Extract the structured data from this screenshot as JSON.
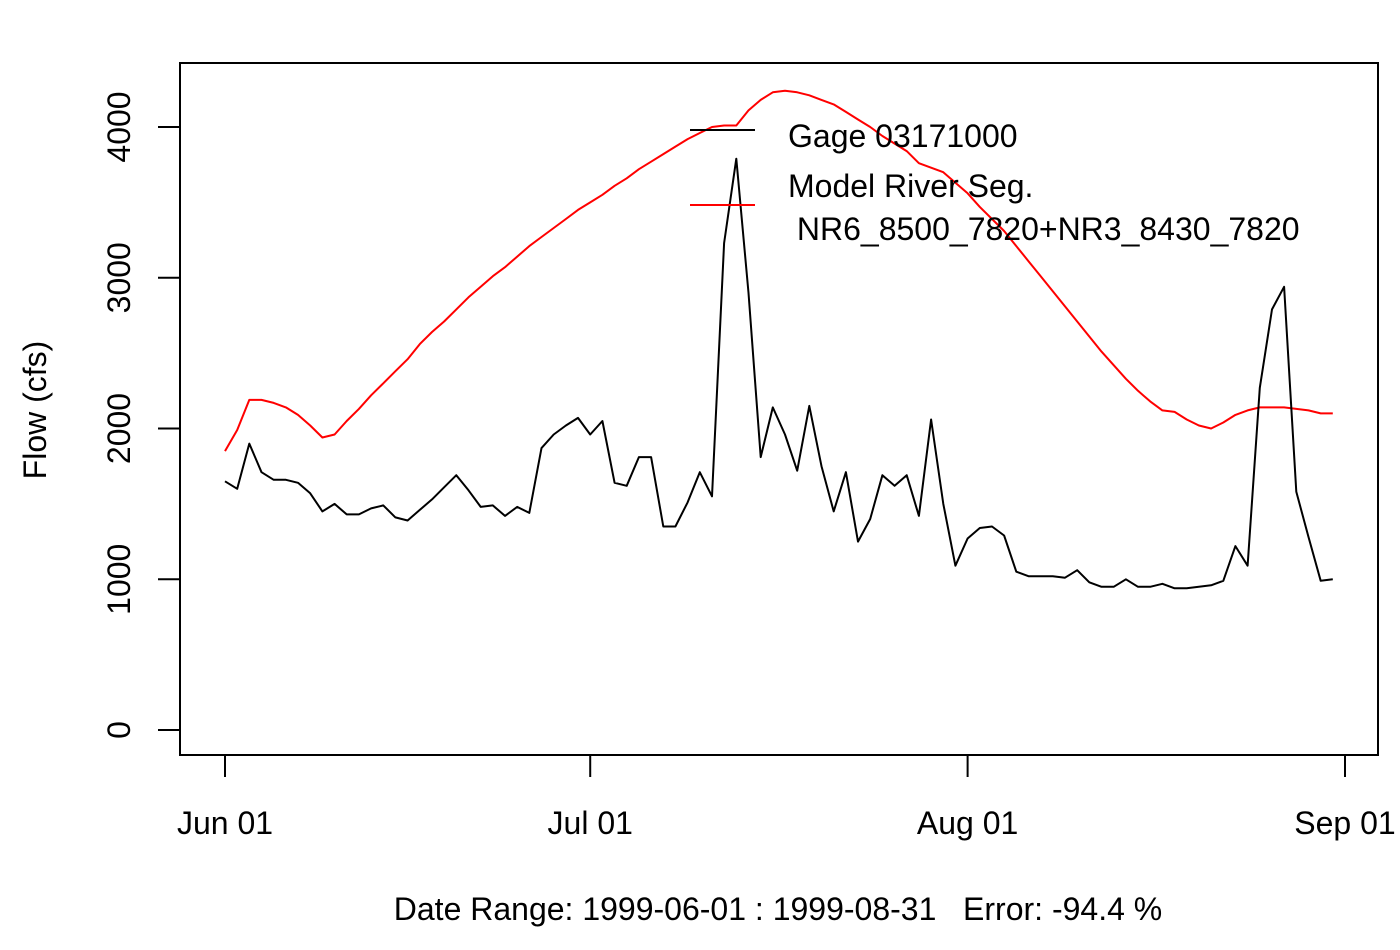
{
  "chart_data": {
    "type": "line",
    "title": "",
    "xlabel": "Date Range: 1999-06-01 : 1999-08-31   Error: -94.4 %",
    "ylabel": "Flow (cfs)",
    "x_start": "1999-06-01",
    "x_end": "1999-08-31",
    "xlim": [
      "1999-06-01",
      "1999-09-01"
    ],
    "ylim": [
      -150,
      4400
    ],
    "x_ticks": [
      {
        "date": "1999-06-01",
        "label": "Jun 01"
      },
      {
        "date": "1999-07-01",
        "label": "Jul 01"
      },
      {
        "date": "1999-08-01",
        "label": "Aug 01"
      },
      {
        "date": "1999-09-01",
        "label": "Sep 01"
      }
    ],
    "y_ticks": [
      0,
      1000,
      2000,
      3000,
      4000
    ],
    "grid": false,
    "legend_position": "top-right",
    "series": [
      {
        "name": "Gage 03171000",
        "color": "#000000",
        "values": [
          1650,
          1600,
          1900,
          1710,
          1660,
          1660,
          1640,
          1570,
          1450,
          1500,
          1430,
          1430,
          1470,
          1490,
          1410,
          1390,
          1460,
          1530,
          1610,
          1690,
          1590,
          1480,
          1490,
          1420,
          1480,
          1440,
          1870,
          1960,
          2020,
          2070,
          1960,
          2050,
          1640,
          1620,
          1810,
          1810,
          1350,
          1350,
          1510,
          1710,
          1550,
          3230,
          3790,
          2900,
          1810,
          2140,
          1960,
          1720,
          2150,
          1750,
          1450,
          1710,
          1250,
          1400,
          1690,
          1620,
          1690,
          1420,
          2060,
          1500,
          1090,
          1270,
          1340,
          1350,
          1290,
          1050,
          1020,
          1020,
          1020,
          1010,
          1060,
          980,
          950,
          950,
          1000,
          950,
          950,
          970,
          940,
          940,
          950,
          960,
          990,
          1220,
          1090,
          2270,
          2790,
          2940,
          1580,
          1280,
          990,
          1000
        ]
      },
      {
        "name": "Model River Seg.",
        "name_line2": " NR6_8500_7820+NR3_8430_7820",
        "color": "#ff0000",
        "values": [
          1850,
          1990,
          2190,
          2190,
          2170,
          2140,
          2090,
          2020,
          1940,
          1960,
          2050,
          2130,
          2220,
          2300,
          2380,
          2460,
          2560,
          2640,
          2710,
          2790,
          2870,
          2940,
          3010,
          3070,
          3140,
          3210,
          3270,
          3330,
          3390,
          3450,
          3500,
          3550,
          3610,
          3660,
          3720,
          3770,
          3820,
          3870,
          3920,
          3960,
          4000,
          4010,
          4010,
          4110,
          4180,
          4230,
          4240,
          4230,
          4210,
          4180,
          4150,
          4100,
          4050,
          4000,
          3940,
          3890,
          3840,
          3760,
          3730,
          3700,
          3630,
          3560,
          3470,
          3390,
          3310,
          3210,
          3110,
          3010,
          2910,
          2810,
          2710,
          2610,
          2510,
          2420,
          2330,
          2250,
          2180,
          2120,
          2110,
          2060,
          2020,
          2000,
          2040,
          2090,
          2120,
          2140,
          2140,
          2140,
          2130,
          2120,
          2100,
          2100
        ]
      }
    ]
  }
}
